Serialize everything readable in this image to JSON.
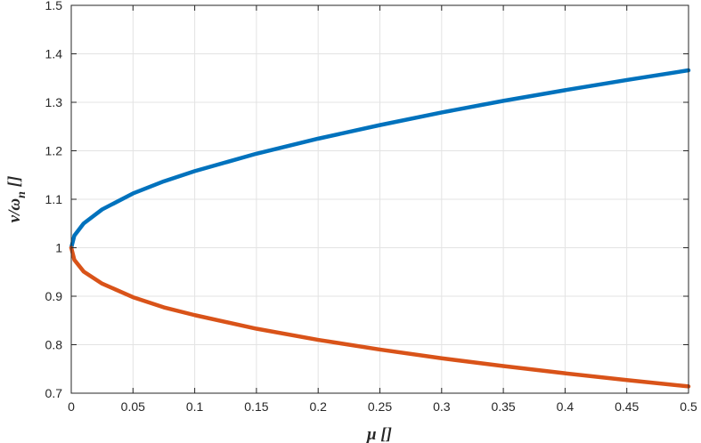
{
  "chart_data": {
    "type": "line",
    "xlabel": "μ []",
    "ylabel": "ν/ω_n []",
    "ylabel_main": "ν/ω",
    "ylabel_sub": "n",
    "ylabel_unit": " []",
    "xlim": [
      0,
      0.5
    ],
    "ylim": [
      0.7,
      1.5
    ],
    "xticks": [
      0,
      0.05,
      0.1,
      0.15,
      0.2,
      0.25,
      0.3,
      0.35,
      0.4,
      0.45,
      0.5
    ],
    "xtick_labels": [
      "0",
      "0.05",
      "0.1",
      "0.15",
      "0.2",
      "0.25",
      "0.3",
      "0.35",
      "0.4",
      "0.45",
      "0.5"
    ],
    "yticks": [
      0.7,
      0.8,
      0.9,
      1.0,
      1.1,
      1.2,
      1.3,
      1.4,
      1.5
    ],
    "ytick_labels": [
      "0.7",
      "0.8",
      "0.9",
      "1",
      "1.1",
      "1.2",
      "1.3",
      "1.4",
      "1.5"
    ],
    "grid": true,
    "series": [
      {
        "color": "#0072BD",
        "x": [
          0,
          0.0025,
          0.01,
          0.025,
          0.05,
          0.075,
          0.1,
          0.15,
          0.2,
          0.25,
          0.3,
          0.35,
          0.4,
          0.45,
          0.5
        ],
        "y": [
          1.0,
          1.025,
          1.05,
          1.079,
          1.112,
          1.137,
          1.158,
          1.194,
          1.225,
          1.253,
          1.279,
          1.303,
          1.325,
          1.346,
          1.366
        ]
      },
      {
        "color": "#D95319",
        "x": [
          0,
          0.0025,
          0.01,
          0.025,
          0.05,
          0.075,
          0.1,
          0.15,
          0.2,
          0.25,
          0.3,
          0.35,
          0.4,
          0.45,
          0.5
        ],
        "y": [
          1.0,
          0.975,
          0.951,
          0.926,
          0.898,
          0.877,
          0.861,
          0.833,
          0.81,
          0.79,
          0.772,
          0.756,
          0.741,
          0.727,
          0.714
        ]
      }
    ]
  }
}
